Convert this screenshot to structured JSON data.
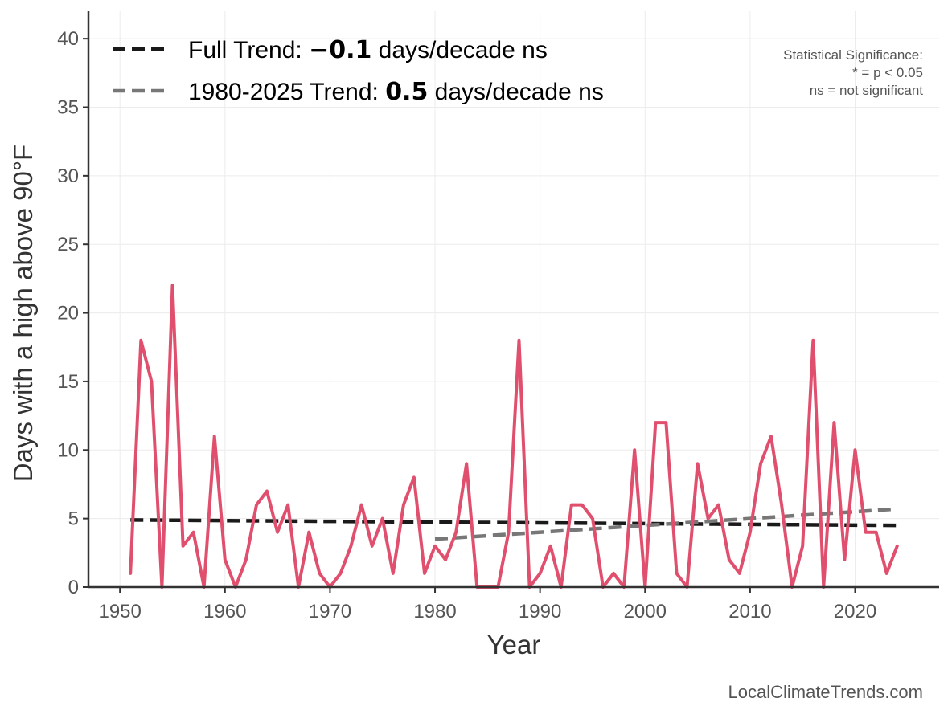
{
  "chart_data": {
    "type": "line",
    "xlabel": "Year",
    "ylabel": "Days with a high above 90°F",
    "xlim": [
      1947,
      2028
    ],
    "ylim": [
      0,
      42
    ],
    "xticks": [
      1950,
      1960,
      1970,
      1980,
      1990,
      2000,
      2010,
      2020
    ],
    "yticks": [
      0,
      5,
      10,
      15,
      20,
      25,
      30,
      35,
      40
    ],
    "grid": true,
    "legend_position": "top-left",
    "colors": {
      "series": "#e0506e",
      "full_trend": "#1a1a1a",
      "recent_trend": "#777777"
    },
    "series": [
      {
        "x": [
          1951,
          1952,
          1953,
          1954,
          1955,
          1956,
          1957,
          1958,
          1959,
          1960,
          1961,
          1962,
          1963,
          1964,
          1965,
          1966,
          1967,
          1968,
          1969,
          1970,
          1971,
          1972,
          1973,
          1974,
          1975,
          1976,
          1977,
          1978,
          1979,
          1980,
          1981,
          1982,
          1983,
          1984,
          1985,
          1986,
          1987,
          1988,
          1989,
          1990,
          1991,
          1992,
          1993,
          1994,
          1995,
          1996,
          1997,
          1998,
          1999,
          2000,
          2001,
          2002,
          2003,
          2004,
          2005,
          2006,
          2007,
          2008,
          2009,
          2010,
          2011,
          2012,
          2013,
          2014,
          2015,
          2016,
          2017,
          2018,
          2019,
          2020,
          2021,
          2022,
          2023,
          2024
        ],
        "values": [
          1,
          18,
          15,
          0,
          22,
          3,
          4,
          0,
          11,
          2,
          0,
          2,
          6,
          7,
          4,
          6,
          0,
          4,
          1,
          0,
          1,
          3,
          6,
          3,
          5,
          1,
          6,
          8,
          1,
          3,
          2,
          4,
          9,
          0,
          0,
          0,
          4,
          18,
          0,
          1,
          3,
          0,
          6,
          6,
          5,
          0,
          1,
          0,
          10,
          0,
          12,
          12,
          1,
          0,
          9,
          5,
          6,
          2,
          1,
          4,
          9,
          11,
          6,
          0,
          3,
          18,
          0,
          12,
          2,
          10,
          4,
          4,
          1,
          3
        ]
      }
    ],
    "trends": [
      {
        "label_prefix": "Full Trend: ",
        "value_label": "−0.1",
        "label_suffix": " days/decade ns",
        "x": [
          1951,
          2024
        ],
        "y": [
          4.9,
          4.5
        ]
      },
      {
        "label_prefix": "1980-2025 Trend: ",
        "value_label": "0.5",
        "label_suffix": " days/decade ns",
        "x": [
          1980,
          2024
        ],
        "y": [
          3.5,
          5.7
        ]
      }
    ],
    "annotation": [
      "Statistical Significance:",
      "* = p < 0.05",
      "ns = not significant"
    ],
    "credit": "LocalClimateTrends.com"
  }
}
